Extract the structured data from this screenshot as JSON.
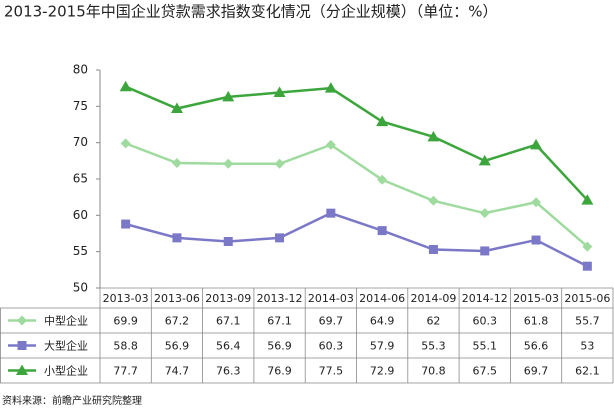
{
  "chart_data": {
    "type": "line",
    "title": "2013-2015年中国企业贷款需求指数变化情况（分企业规模）（单位：%）",
    "source": "资料来源：前瞻产业研究院整理",
    "categories": [
      "2013-03",
      "2013-06",
      "2013-09",
      "2013-12",
      "2014-03",
      "2014-06",
      "2014-09",
      "2014-12",
      "2015-03",
      "2015-06"
    ],
    "series": [
      {
        "name": "中型企业",
        "color": "#9fdb9f",
        "marker": "diamond",
        "values": [
          69.9,
          67.2,
          67.1,
          67.1,
          69.7,
          64.9,
          62,
          60.3,
          61.8,
          55.7
        ]
      },
      {
        "name": "大型企业",
        "color": "#7c78c8",
        "marker": "square",
        "values": [
          58.8,
          56.9,
          56.4,
          56.9,
          60.3,
          57.9,
          55.3,
          55.1,
          56.6,
          53
        ]
      },
      {
        "name": "小型企业",
        "color": "#3ca63c",
        "marker": "triangle",
        "values": [
          77.7,
          74.7,
          76.3,
          76.9,
          77.5,
          72.9,
          70.8,
          67.5,
          69.7,
          62.1
        ]
      }
    ],
    "ylim": [
      50,
      80
    ],
    "yticks": [
      50,
      55,
      60,
      65,
      70,
      75,
      80
    ],
    "grid": false
  }
}
